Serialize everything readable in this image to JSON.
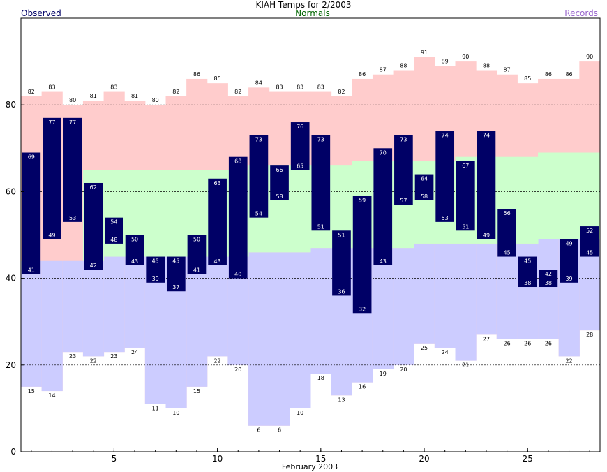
{
  "header": {
    "title": "KIAH Temps for 2/2003",
    "observed_label": "Observed",
    "normals_label": "Normals",
    "records_label": "Records"
  },
  "colors": {
    "observed_bar": "#000066",
    "observed_text": "#ffffff",
    "record_high_fill": "#ffcccc",
    "normal_fill": "#ccffcc",
    "record_low_fill": "#ccccff",
    "observed_label": "#000066",
    "normals_label": "#006600",
    "records_label": "#9966cc"
  },
  "chart_data": {
    "type": "bar",
    "xlabel": "February 2003",
    "ylabel": "",
    "ylim": [
      0,
      100
    ],
    "yticks": [
      0,
      20,
      40,
      60,
      80
    ],
    "xticks": [
      5,
      10,
      15,
      20,
      25
    ],
    "gridlines": [
      20,
      40,
      60,
      80
    ],
    "days": [
      1,
      2,
      3,
      4,
      5,
      6,
      7,
      8,
      9,
      10,
      11,
      12,
      13,
      14,
      15,
      16,
      17,
      18,
      19,
      20,
      21,
      22,
      23,
      24,
      25,
      26,
      27,
      28
    ],
    "observed_high": [
      69,
      77,
      77,
      62,
      54,
      50,
      45,
      45,
      50,
      63,
      68,
      73,
      66,
      76,
      73,
      51,
      59,
      70,
      73,
      64,
      74,
      67,
      74,
      56,
      45,
      42,
      49,
      52
    ],
    "observed_low": [
      41,
      49,
      53,
      42,
      48,
      43,
      39,
      37,
      41,
      43,
      40,
      54,
      58,
      65,
      51,
      36,
      32,
      43,
      57,
      58,
      53,
      51,
      49,
      45,
      38,
      38,
      39,
      45
    ],
    "record_high": [
      82,
      83,
      80,
      81,
      83,
      81,
      80,
      82,
      86,
      85,
      82,
      84,
      83,
      83,
      83,
      82,
      86,
      87,
      88,
      91,
      89,
      90,
      88,
      87,
      85,
      86,
      86,
      90
    ],
    "record_low": [
      15,
      14,
      23,
      22,
      23,
      24,
      11,
      10,
      15,
      22,
      20,
      6,
      6,
      10,
      18,
      13,
      16,
      19,
      20,
      25,
      24,
      21,
      27,
      26,
      26,
      26,
      22,
      28
    ],
    "normal_high": [
      null,
      null,
      null,
      65,
      65,
      65,
      65,
      65,
      65,
      65,
      65,
      66,
      66,
      66,
      66,
      66,
      67,
      67,
      67,
      67,
      67,
      68,
      68,
      68,
      68,
      69,
      69,
      69
    ],
    "normal_low": [
      null,
      null,
      44,
      44,
      45,
      45,
      45,
      45,
      45,
      45,
      45,
      46,
      46,
      46,
      47,
      47,
      47,
      47,
      47,
      48,
      48,
      48,
      48,
      48,
      48,
      49,
      49,
      49
    ]
  }
}
